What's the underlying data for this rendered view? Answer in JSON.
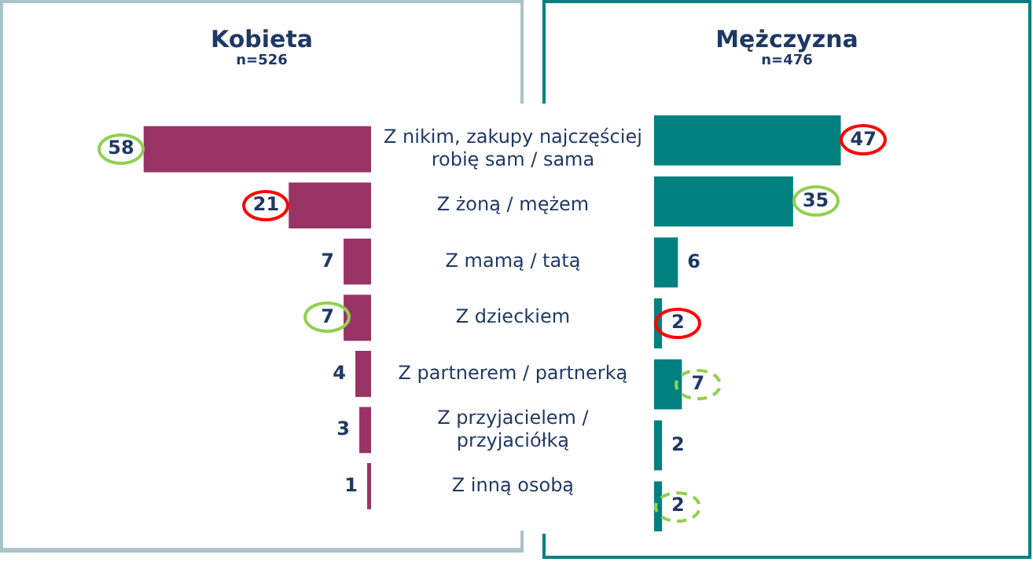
{
  "chart_data": [
    {
      "type": "bar",
      "orientation": "horizontal",
      "title": "Kobieta",
      "subtitle": "n=526",
      "categories": [
        "Z nikim, zakupy najczęściej robię sam / sama",
        "Z żoną / mężem",
        "Z mamą / tatą",
        "Z dzieckiem",
        "Z partnerem / partnerką",
        "Z przyjacielem / przyjaciółką",
        "Z inną osobą"
      ],
      "values": [
        58,
        21,
        7,
        7,
        4,
        3,
        1
      ],
      "color": "#993366",
      "data_labels": true,
      "tick_labels": "y"
    },
    {
      "type": "bar",
      "orientation": "horizontal",
      "title": "Mężczyzna",
      "subtitle": "n=476",
      "categories": [
        null,
        null,
        null,
        null,
        null,
        null,
        null
      ],
      "values": [
        47,
        35,
        6,
        2,
        7,
        2,
        2
      ],
      "color": "#00807f",
      "data_labels": true,
      "tick_labels": false
    }
  ]
}
